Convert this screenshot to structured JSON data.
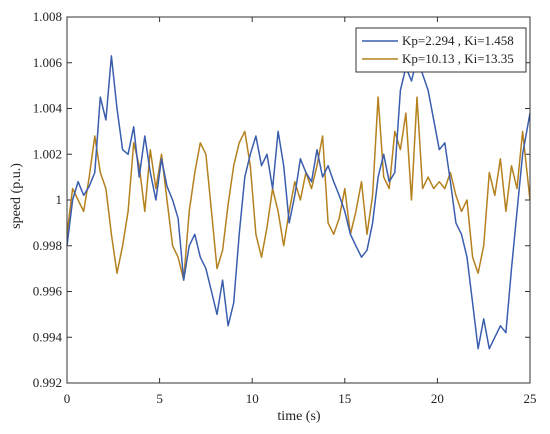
{
  "chart_data": {
    "type": "line",
    "title": "",
    "xlabel": "time (s)",
    "ylabel": "speed (p.u.)",
    "xlim": [
      0,
      25
    ],
    "ylim": [
      0.992,
      1.008
    ],
    "xticks": [
      0,
      5,
      10,
      15,
      20,
      25
    ],
    "xtick_labels": [
      "0",
      "5",
      "10",
      "15",
      "20",
      "25"
    ],
    "yticks": [
      0.992,
      0.994,
      0.996,
      0.998,
      1.0,
      1.002,
      1.004,
      1.006,
      1.008
    ],
    "ytick_labels": [
      "0.992",
      "0.994",
      "0.996",
      "0.998",
      "1",
      "1.002",
      "1.004",
      "1.006",
      "1.008"
    ],
    "grid": false,
    "legend_position": "top-right",
    "series": [
      {
        "name": "Kp=2.294 , Ki=1.458",
        "color": "#3a5dae",
        "x": [
          0,
          0.3,
          0.6,
          0.9,
          1.2,
          1.5,
          1.8,
          2.1,
          2.4,
          2.7,
          3.0,
          3.3,
          3.6,
          3.9,
          4.2,
          4.5,
          4.8,
          5.1,
          5.4,
          5.7,
          6.0,
          6.3,
          6.6,
          6.9,
          7.2,
          7.5,
          7.8,
          8.1,
          8.4,
          8.7,
          9.0,
          9.3,
          9.6,
          9.9,
          10.2,
          10.5,
          10.8,
          11.1,
          11.4,
          11.7,
          12.0,
          12.3,
          12.6,
          12.9,
          13.2,
          13.5,
          13.8,
          14.1,
          14.4,
          14.7,
          15.0,
          15.3,
          15.6,
          15.9,
          16.2,
          16.5,
          16.8,
          17.1,
          17.4,
          17.7,
          18.0,
          18.3,
          18.6,
          18.9,
          19.2,
          19.5,
          19.8,
          20.1,
          20.4,
          20.7,
          21.0,
          21.3,
          21.6,
          21.9,
          22.2,
          22.5,
          22.8,
          23.1,
          23.4,
          23.7,
          24.0,
          24.3,
          24.6,
          25.0
        ],
        "y": [
          0.998,
          1.0,
          1.0008,
          1.0002,
          1.0006,
          1.0012,
          1.0045,
          1.0035,
          1.0063,
          1.004,
          1.0022,
          1.002,
          1.0032,
          1.001,
          1.0028,
          1.0012,
          1.0,
          1.0018,
          1.0006,
          1.0,
          0.9992,
          0.9965,
          0.998,
          0.9985,
          0.9975,
          0.997,
          0.996,
          0.995,
          0.9965,
          0.9945,
          0.9955,
          0.9985,
          1.001,
          1.002,
          1.0028,
          1.0015,
          1.002,
          1.0005,
          1.003,
          1.0015,
          0.999,
          1.0002,
          1.0018,
          1.0012,
          1.0008,
          1.0022,
          1.001,
          1.0015,
          1.0008,
          1.0002,
          0.9995,
          0.9985,
          0.998,
          0.9975,
          0.9978,
          0.999,
          1.001,
          1.002,
          1.0008,
          1.0012,
          1.0048,
          1.0058,
          1.0052,
          1.0062,
          1.0055,
          1.0048,
          1.0035,
          1.0022,
          1.0025,
          1.0008,
          0.999,
          0.9985,
          0.9975,
          0.9955,
          0.9935,
          0.9948,
          0.9935,
          0.994,
          0.9945,
          0.9942,
          0.997,
          0.9995,
          1.002,
          1.0038
        ]
      },
      {
        "name": "Kp=10.13 , Ki=13.35",
        "color": "#b5801e",
        "x": [
          0,
          0.3,
          0.6,
          0.9,
          1.2,
          1.5,
          1.8,
          2.1,
          2.4,
          2.7,
          3.0,
          3.3,
          3.6,
          3.9,
          4.2,
          4.5,
          4.8,
          5.1,
          5.4,
          5.7,
          6.0,
          6.3,
          6.6,
          6.9,
          7.2,
          7.5,
          7.8,
          8.1,
          8.4,
          8.7,
          9.0,
          9.3,
          9.6,
          9.9,
          10.2,
          10.5,
          10.8,
          11.1,
          11.4,
          11.7,
          12.0,
          12.3,
          12.6,
          12.9,
          13.2,
          13.5,
          13.8,
          14.1,
          14.4,
          14.7,
          15.0,
          15.3,
          15.6,
          15.9,
          16.2,
          16.5,
          16.8,
          17.1,
          17.4,
          17.7,
          18.0,
          18.3,
          18.6,
          18.9,
          19.2,
          19.5,
          19.8,
          20.1,
          20.4,
          20.7,
          21.0,
          21.3,
          21.6,
          21.9,
          22.2,
          22.5,
          22.8,
          23.1,
          23.4,
          23.7,
          24.0,
          24.3,
          24.6,
          25.0
        ],
        "y": [
          0.9985,
          1.0005,
          1.0,
          0.9995,
          1.001,
          1.0028,
          1.0012,
          1.0005,
          0.9985,
          0.9968,
          0.998,
          0.9995,
          1.0025,
          1.0015,
          0.9995,
          1.0022,
          1.0005,
          1.002,
          1.0,
          0.998,
          0.9975,
          0.9965,
          0.9995,
          1.0012,
          1.0025,
          1.002,
          0.9995,
          0.997,
          0.9978,
          0.9998,
          1.0015,
          1.0025,
          1.003,
          1.0015,
          0.9985,
          0.9975,
          0.9988,
          1.0005,
          0.9995,
          0.998,
          0.9995,
          1.0008,
          1.0,
          1.0012,
          1.0005,
          1.0015,
          1.0028,
          0.999,
          0.9985,
          0.9992,
          1.0005,
          0.9985,
          0.9995,
          1.0008,
          0.9985,
          1.0002,
          1.0045,
          1.001,
          1.0005,
          1.003,
          1.0022,
          1.0038,
          1.0,
          1.0045,
          1.0005,
          1.001,
          1.0005,
          1.0008,
          1.0005,
          1.0012,
          1.0002,
          0.9995,
          1.0,
          0.9975,
          0.9968,
          0.998,
          1.0012,
          1.0002,
          1.0018,
          0.9995,
          1.0015,
          1.0005,
          1.003,
          1.0
        ]
      }
    ]
  }
}
